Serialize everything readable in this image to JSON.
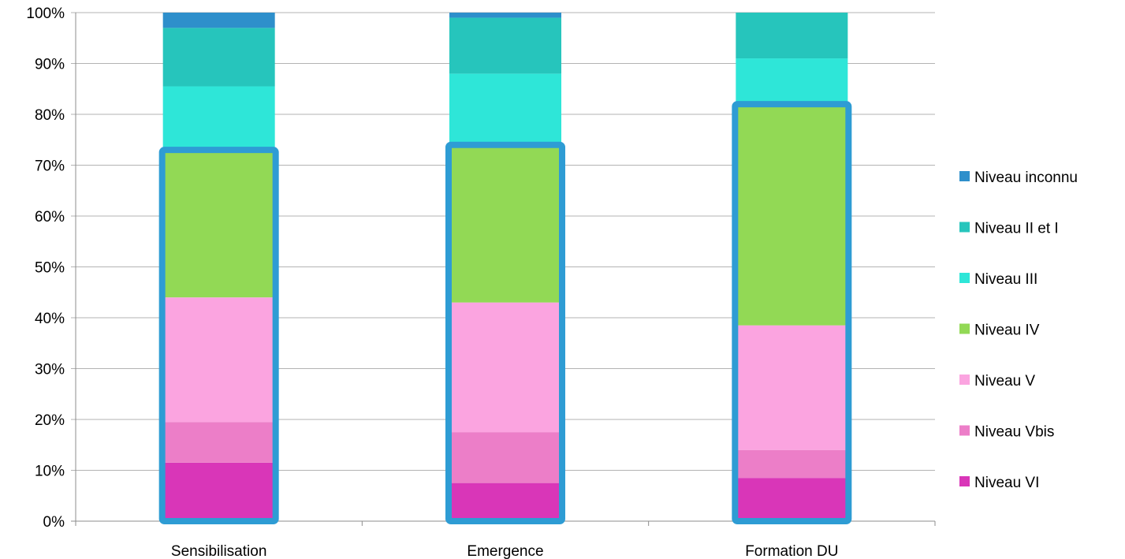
{
  "chart_data": {
    "type": "bar",
    "stacked": "percent",
    "categories": [
      "Sensibilisation",
      "Emergence",
      "Formation DU"
    ],
    "series": [
      {
        "name": "Niveau VI",
        "color": "#d936b8",
        "values": [
          11.5,
          7.5,
          8.5
        ]
      },
      {
        "name": "Niveau Vbis",
        "color": "#ec7ec8",
        "values": [
          8.0,
          10.0,
          5.5
        ]
      },
      {
        "name": "Niveau V",
        "color": "#fba4e0",
        "values": [
          24.5,
          25.5,
          24.5
        ]
      },
      {
        "name": "Niveau IV",
        "color": "#92d955",
        "values": [
          29.0,
          31.0,
          43.5
        ]
      },
      {
        "name": "Niveau III",
        "color": "#2ee6d8",
        "values": [
          12.5,
          14.0,
          9.0
        ]
      },
      {
        "name": "Niveau II et I",
        "color": "#26c5bc",
        "values": [
          11.5,
          11.0,
          9.0
        ]
      },
      {
        "name": "Niveau inconnu",
        "color": "#2e8fcb",
        "values": [
          3.0,
          1.0,
          0.0
        ]
      }
    ],
    "highlight": {
      "color": "#2e9cd4",
      "series_included": [
        "Niveau VI",
        "Niveau Vbis",
        "Niveau V",
        "Niveau IV"
      ]
    },
    "y_ticks": [
      "0%",
      "10%",
      "20%",
      "30%",
      "40%",
      "50%",
      "60%",
      "70%",
      "80%",
      "90%",
      "100%"
    ],
    "ylim": [
      0,
      100
    ],
    "grid": true,
    "legend_position": "right",
    "legend_order": [
      "Niveau inconnu",
      "Niveau II et I",
      "Niveau III",
      "Niveau IV",
      "Niveau V",
      "Niveau Vbis",
      "Niveau VI"
    ]
  }
}
